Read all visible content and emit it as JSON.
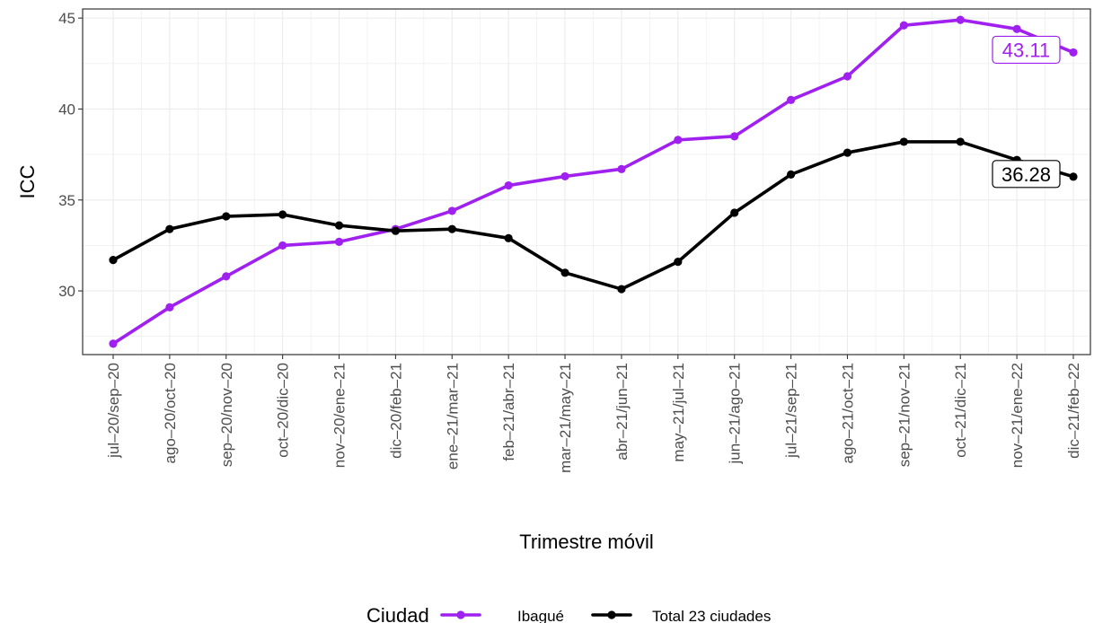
{
  "chart_data": {
    "type": "line",
    "xlabel": "Trimestre móvil",
    "ylabel": "ICC",
    "ylim": [
      26.5,
      45.5
    ],
    "yticks": [
      30,
      35,
      40,
      45
    ],
    "categories": [
      "jul–20/sep–20",
      "ago–20/oct–20",
      "sep–20/nov–20",
      "oct–20/dic–20",
      "nov–20/ene–21",
      "dic–20/feb–21",
      "ene–21/mar–21",
      "feb–21/abr–21",
      "mar–21/may–21",
      "abr–21/jun–21",
      "may–21/jul–21",
      "jun–21/ago–21",
      "jul–21/sep–21",
      "ago–21/oct–21",
      "sep–21/nov–21",
      "oct–21/dic–21",
      "nov–21/ene–22",
      "dic–21/feb–22"
    ],
    "series": [
      {
        "name": "Ibagué",
        "color": "#a020f0",
        "values": [
          27.1,
          29.1,
          30.8,
          32.5,
          32.7,
          33.4,
          34.4,
          35.8,
          36.3,
          36.7,
          38.3,
          38.5,
          40.5,
          41.8,
          44.6,
          44.9,
          44.4,
          43.11
        ]
      },
      {
        "name": "Total 23 ciudades",
        "color": "#000000",
        "values": [
          31.7,
          33.4,
          34.1,
          34.2,
          33.6,
          33.3,
          33.4,
          32.9,
          31.0,
          30.1,
          31.6,
          34.3,
          36.4,
          37.6,
          38.2,
          38.2,
          37.2,
          36.28
        ]
      }
    ],
    "end_labels": [
      "43.11",
      "36.28"
    ],
    "grid": true,
    "legend": {
      "title": "Ciudad",
      "position": "bottom"
    }
  }
}
